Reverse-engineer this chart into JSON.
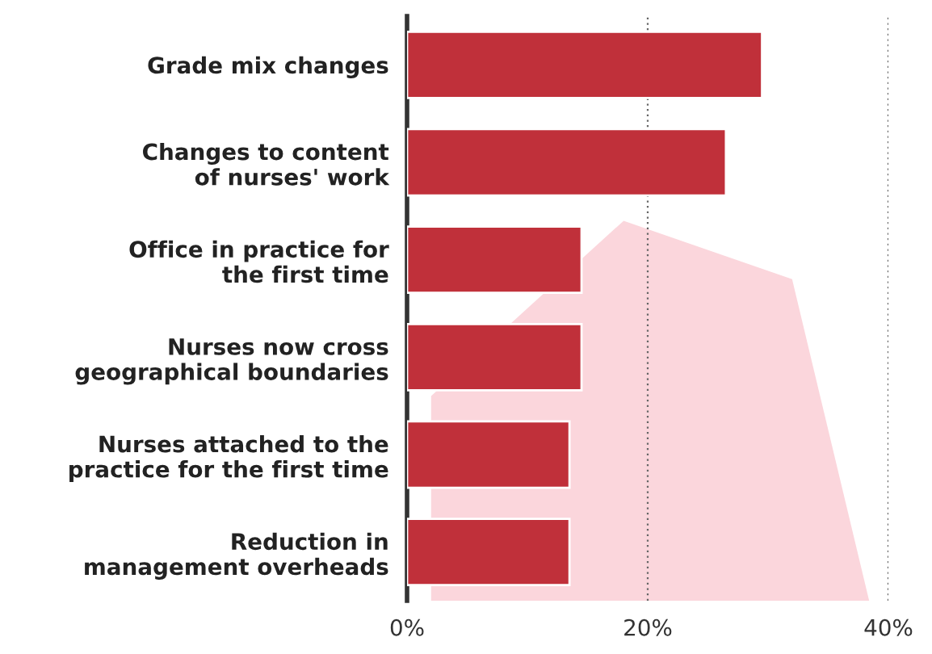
{
  "chart_data": {
    "type": "bar",
    "orientation": "horizontal",
    "categories": [
      "Grade mix changes",
      "Changes to content\nof nurses' work",
      "Office in practice for\nthe first time",
      "Nurses now cross\ngeographical boundaries",
      "Nurses attached to the\npractice for the first time",
      "Reduction in\nmanagement overheads"
    ],
    "values": [
      29.5,
      26.5,
      14.5,
      14.5,
      13.5,
      13.5
    ],
    "color": "#c0303a",
    "xlim": [
      0,
      40
    ],
    "xticks": [
      {
        "value": 0,
        "label": "0%"
      },
      {
        "value": 20,
        "label": "20%"
      },
      {
        "value": 40,
        "label": "40%"
      }
    ],
    "grid": "x"
  }
}
